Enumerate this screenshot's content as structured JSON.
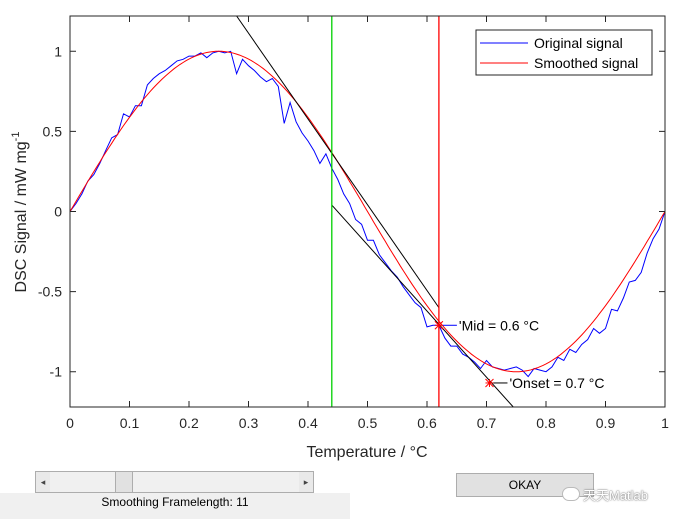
{
  "chart_data": {
    "type": "line",
    "xlabel": "Temperature / °C",
    "ylabel": "DSC Signal / mW mg",
    "ylabel_superscript": "-1",
    "xlim": [
      0,
      1
    ],
    "ylim": [
      -1.22,
      1.22
    ],
    "xticks": [
      0,
      0.1,
      0.2,
      0.3,
      0.4,
      0.5,
      0.6,
      0.7,
      0.8,
      0.9,
      1
    ],
    "yticks": [
      -1,
      -0.5,
      0,
      0.5,
      1
    ],
    "xtick_labels": [
      "0",
      "0.1",
      "0.2",
      "0.3",
      "0.4",
      "0.5",
      "0.6",
      "0.7",
      "0.8",
      "0.9",
      "1"
    ],
    "ytick_labels": [
      "-1",
      "-0.5",
      "0",
      "0.5",
      "1"
    ],
    "legend_position": "top-right",
    "series": [
      {
        "name": "Original signal",
        "color": "#0000ff",
        "x": [
          0.0,
          0.01,
          0.02,
          0.03,
          0.04,
          0.05,
          0.06,
          0.07,
          0.08,
          0.09,
          0.1,
          0.11,
          0.12,
          0.13,
          0.14,
          0.15,
          0.16,
          0.17,
          0.18,
          0.19,
          0.2,
          0.21,
          0.22,
          0.23,
          0.24,
          0.25,
          0.26,
          0.27,
          0.28,
          0.29,
          0.3,
          0.31,
          0.32,
          0.33,
          0.34,
          0.35,
          0.36,
          0.37,
          0.38,
          0.39,
          0.4,
          0.41,
          0.42,
          0.43,
          0.44,
          0.45,
          0.46,
          0.47,
          0.48,
          0.49,
          0.5,
          0.51,
          0.52,
          0.53,
          0.54,
          0.55,
          0.56,
          0.57,
          0.58,
          0.59,
          0.6,
          0.61,
          0.62,
          0.63,
          0.64,
          0.65,
          0.66,
          0.67,
          0.68,
          0.69,
          0.7,
          0.71,
          0.72,
          0.73,
          0.74,
          0.75,
          0.76,
          0.77,
          0.78,
          0.79,
          0.8,
          0.81,
          0.82,
          0.83,
          0.84,
          0.85,
          0.86,
          0.87,
          0.88,
          0.89,
          0.9,
          0.91,
          0.92,
          0.93,
          0.94,
          0.95,
          0.96,
          0.97,
          0.98,
          0.99,
          1.0
        ],
        "y": [
          0.0,
          0.05,
          0.11,
          0.19,
          0.23,
          0.3,
          0.38,
          0.46,
          0.48,
          0.61,
          0.59,
          0.66,
          0.66,
          0.79,
          0.83,
          0.86,
          0.88,
          0.91,
          0.94,
          0.95,
          0.97,
          0.97,
          0.99,
          0.96,
          0.99,
          1.0,
          0.99,
          1.0,
          0.86,
          0.95,
          0.91,
          0.88,
          0.84,
          0.81,
          0.83,
          0.78,
          0.55,
          0.68,
          0.56,
          0.49,
          0.44,
          0.38,
          0.3,
          0.36,
          0.27,
          0.2,
          0.11,
          0.05,
          -0.05,
          -0.08,
          -0.18,
          -0.18,
          -0.27,
          -0.32,
          -0.37,
          -0.41,
          -0.47,
          -0.52,
          -0.57,
          -0.6,
          -0.72,
          -0.71,
          -0.71,
          -0.79,
          -0.84,
          -0.84,
          -0.89,
          -0.91,
          -0.94,
          -0.98,
          -0.93,
          -0.97,
          -0.98,
          -0.99,
          -0.98,
          -0.97,
          -0.99,
          -1.03,
          -0.98,
          -0.99,
          -1.0,
          -0.97,
          -0.91,
          -0.93,
          -0.86,
          -0.88,
          -0.83,
          -0.8,
          -0.73,
          -0.76,
          -0.73,
          -0.61,
          -0.62,
          -0.54,
          -0.44,
          -0.43,
          -0.38,
          -0.26,
          -0.17,
          -0.11,
          0.0
        ]
      },
      {
        "name": "Smoothed signal",
        "color": "#ff0000",
        "function": "sin(2*pi*x)",
        "x_range": [
          0,
          1
        ]
      }
    ],
    "tangent_lines": [
      {
        "color": "#000000",
        "x": [
          0.28,
          0.62
        ],
        "y": [
          1.22,
          -0.6
        ]
      },
      {
        "color": "#000000",
        "x": [
          0.44,
          0.745
        ],
        "y": [
          0.04,
          -1.22
        ]
      }
    ],
    "vertical_lines": [
      {
        "color": "#00d000",
        "x": 0.44
      },
      {
        "color": "#ff0000",
        "x": 0.62
      }
    ],
    "annotations": [
      {
        "text": "'Mid = 0.6 °C",
        "x": 0.62,
        "y": -0.71,
        "marker_color": "#ff0000",
        "label_line_color": "#0000ff"
      },
      {
        "text": "'Onset = 0.7 °C",
        "x": 0.705,
        "y": -1.07,
        "marker_color": "#ff0000",
        "label_line_color": "#000000"
      }
    ]
  },
  "controls": {
    "slider_left_arrow": "◂",
    "slider_right_arrow": "▸",
    "slider_fraction": 0.28,
    "framelength_label": "Smoothing Framelength: 11",
    "okay_button": "OKAY"
  },
  "watermark": "天天Matlab"
}
